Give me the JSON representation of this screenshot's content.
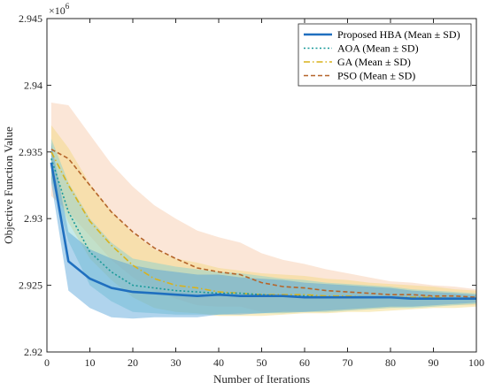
{
  "chart_data": {
    "type": "line",
    "title": "",
    "xlabel": "Number of Iterations",
    "ylabel": "Objective Function Value",
    "y_exponent_label": "×10",
    "y_exponent_power": "6",
    "xlim": [
      0,
      100
    ],
    "ylim": [
      2.92,
      2.945
    ],
    "xticks": [
      0,
      10,
      20,
      30,
      40,
      50,
      60,
      70,
      80,
      90,
      100
    ],
    "xtick_labels": [
      "0",
      "10",
      "20",
      "30",
      "40",
      "50",
      "60",
      "70",
      "80",
      "90",
      "100"
    ],
    "yticks": [
      2.92,
      2.925,
      2.93,
      2.935,
      2.94,
      2.945
    ],
    "ytick_labels": [
      "2.92",
      "2.925",
      "2.93",
      "2.935",
      "2.94",
      "2.945"
    ],
    "legend_position": "top-right",
    "grid": false,
    "x": [
      1,
      5,
      10,
      15,
      20,
      25,
      30,
      35,
      40,
      45,
      50,
      55,
      60,
      65,
      70,
      75,
      80,
      85,
      90,
      95,
      100
    ],
    "series": [
      {
        "name": "Proposed HBA (Mean ± SD)",
        "color": "#1f6fbf",
        "line_style": "solid",
        "mean": [
          2.9342,
          2.9268,
          2.9255,
          2.9248,
          2.9245,
          2.9244,
          2.9243,
          2.9242,
          2.9243,
          2.9242,
          2.9242,
          2.9242,
          2.9241,
          2.9241,
          2.9241,
          2.9241,
          2.9241,
          2.924,
          2.924,
          2.924,
          2.924
        ],
        "sd": [
          0.0015,
          0.0022,
          0.0022,
          0.0022,
          0.002,
          0.0018,
          0.0017,
          0.0016,
          0.0015,
          0.0014,
          0.0013,
          0.0012,
          0.0011,
          0.001,
          0.0009,
          0.0008,
          0.0007,
          0.0006,
          0.0005,
          0.0004,
          0.0003
        ],
        "band_color": "#4f9fd6"
      },
      {
        "name": "AOA (Mean ± SD)",
        "color": "#1a9a9a",
        "line_style": "dotted",
        "mean": [
          2.9345,
          2.9305,
          2.9275,
          2.926,
          2.925,
          2.9248,
          2.9246,
          2.9245,
          2.9244,
          2.9244,
          2.9243,
          2.9242,
          2.9242,
          2.9241,
          2.9241,
          2.9241,
          2.9241,
          2.924,
          2.924,
          2.924,
          2.924
        ],
        "sd": [
          0.0015,
          0.0022,
          0.0025,
          0.0022,
          0.002,
          0.0019,
          0.0018,
          0.0017,
          0.0016,
          0.0015,
          0.0014,
          0.0013,
          0.0012,
          0.0011,
          0.001,
          0.0009,
          0.0008,
          0.0007,
          0.0006,
          0.0005,
          0.0004
        ],
        "band_color": "#7fd0d0"
      },
      {
        "name": "GA (Mean ± SD)",
        "color": "#d9b21a",
        "line_style": "dashdot",
        "mean": [
          2.935,
          2.9325,
          2.9298,
          2.928,
          2.9265,
          2.9255,
          2.925,
          2.9248,
          2.9245,
          2.9244,
          2.9243,
          2.9243,
          2.9243,
          2.9242,
          2.9242,
          2.9241,
          2.9241,
          2.9241,
          2.9241,
          2.924,
          2.924
        ],
        "sd": [
          0.002,
          0.0028,
          0.0028,
          0.0026,
          0.0024,
          0.0022,
          0.002,
          0.0019,
          0.0018,
          0.0017,
          0.0016,
          0.0015,
          0.0014,
          0.0013,
          0.0012,
          0.0011,
          0.001,
          0.0009,
          0.0008,
          0.0007,
          0.0006
        ],
        "band_color": "#f2d77a"
      },
      {
        "name": "PSO (Mean ± SD)",
        "color": "#b5652a",
        "line_style": "dashed",
        "mean": [
          2.9352,
          2.9345,
          2.9325,
          2.9305,
          2.929,
          2.9278,
          2.927,
          2.9263,
          2.926,
          2.9258,
          2.9252,
          2.9249,
          2.9248,
          2.9246,
          2.9245,
          2.9244,
          2.9243,
          2.9243,
          2.9242,
          2.9242,
          2.9241
        ],
        "sd": [
          0.0035,
          0.004,
          0.0038,
          0.0036,
          0.0034,
          0.0032,
          0.003,
          0.0028,
          0.0026,
          0.0024,
          0.0022,
          0.002,
          0.0018,
          0.0016,
          0.0014,
          0.0012,
          0.001,
          0.0009,
          0.0008,
          0.0007,
          0.0006
        ],
        "band_color": "#f6c7a6"
      }
    ]
  }
}
